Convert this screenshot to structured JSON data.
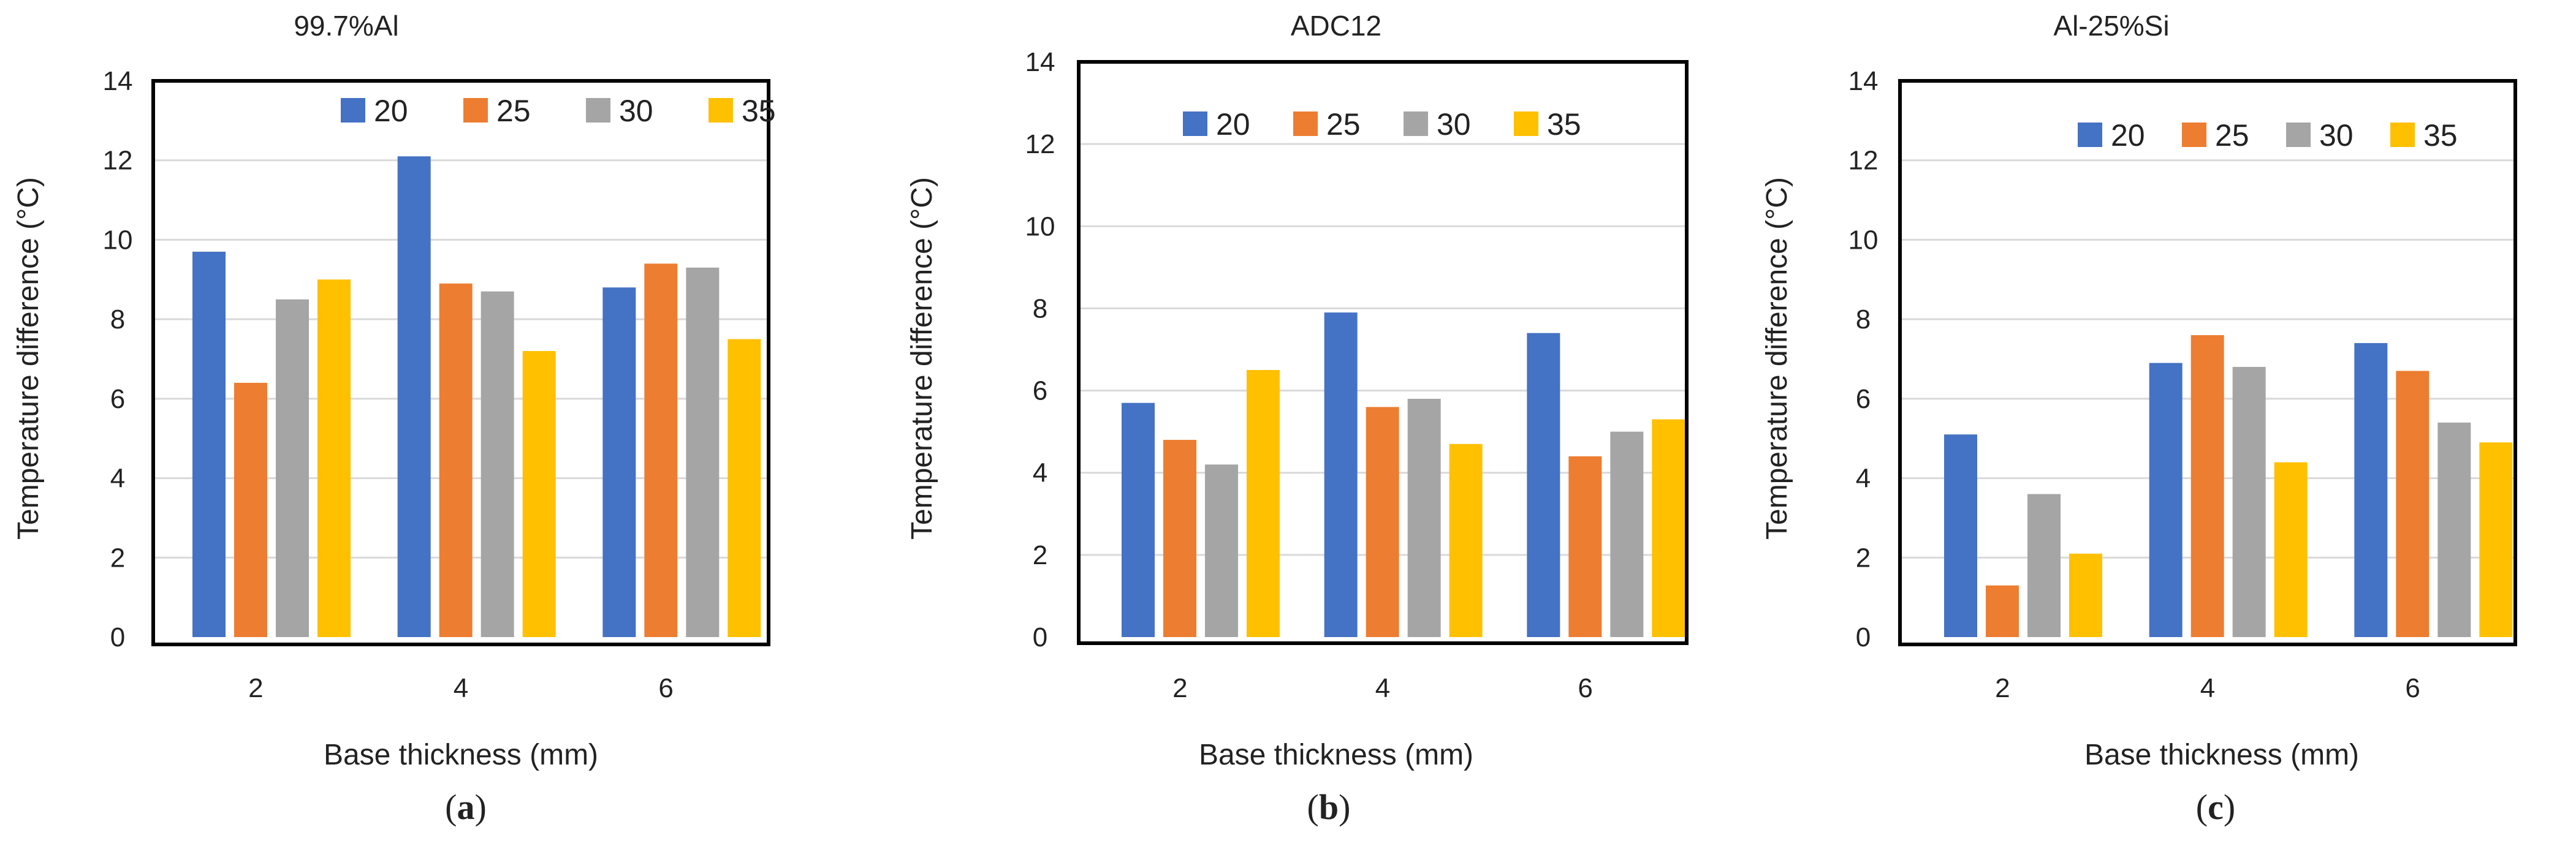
{
  "chart_data": [
    {
      "type": "bar",
      "panel": "a",
      "title": "99.7%Al",
      "xlabel": "Base thickness  (mm)",
      "ylabel": "Temperature difference (°C)",
      "categories": [
        "2",
        "4",
        "6"
      ],
      "ylim": [
        0,
        14
      ],
      "yticks": [
        0,
        2,
        4,
        6,
        8,
        10,
        12,
        14
      ],
      "grid": true,
      "legend_position": "top",
      "series": [
        {
          "name": "20",
          "color": "#4472C4",
          "values": [
            9.7,
            12.1,
            8.8
          ]
        },
        {
          "name": "25",
          "color": "#ED7D31",
          "values": [
            6.4,
            8.9,
            9.4
          ]
        },
        {
          "name": "30",
          "color": "#A5A5A5",
          "values": [
            8.5,
            8.7,
            9.3
          ]
        },
        {
          "name": "35",
          "color": "#FFC000",
          "values": [
            9.0,
            7.2,
            7.5
          ]
        }
      ]
    },
    {
      "type": "bar",
      "panel": "b",
      "title": "ADC12",
      "xlabel": "Base thickness  (mm)",
      "ylabel": "Temperature difference (°C)",
      "categories": [
        "2",
        "4",
        "6"
      ],
      "ylim": [
        0,
        14
      ],
      "yticks": [
        0,
        2,
        4,
        6,
        8,
        10,
        12,
        14
      ],
      "grid": true,
      "legend_position": "top",
      "series": [
        {
          "name": "20",
          "color": "#4472C4",
          "values": [
            5.7,
            7.9,
            7.4
          ]
        },
        {
          "name": "25",
          "color": "#ED7D31",
          "values": [
            4.8,
            5.6,
            4.4
          ]
        },
        {
          "name": "30",
          "color": "#A5A5A5",
          "values": [
            4.2,
            5.8,
            5.0
          ]
        },
        {
          "name": "35",
          "color": "#FFC000",
          "values": [
            6.5,
            4.7,
            5.3
          ]
        }
      ]
    },
    {
      "type": "bar",
      "panel": "c",
      "title": "Al-25%Si",
      "xlabel": "Base thickness (mm)",
      "ylabel": "Temperature difference (°C)",
      "categories": [
        "2",
        "4",
        "6"
      ],
      "ylim": [
        0,
        14
      ],
      "yticks": [
        0,
        2,
        4,
        6,
        8,
        10,
        12,
        14
      ],
      "grid": true,
      "legend_position": "top",
      "series": [
        {
          "name": "20",
          "color": "#4472C4",
          "values": [
            5.1,
            6.9,
            7.4
          ]
        },
        {
          "name": "25",
          "color": "#ED7D31",
          "values": [
            1.3,
            7.6,
            6.7
          ]
        },
        {
          "name": "30",
          "color": "#A5A5A5",
          "values": [
            3.6,
            6.8,
            5.4
          ]
        },
        {
          "name": "35",
          "color": "#FFC000",
          "values": [
            2.1,
            4.4,
            4.9
          ]
        }
      ]
    }
  ],
  "panel_labels": [
    "(a)",
    "(b)",
    "(c)"
  ],
  "panel_letters": [
    "a",
    "b",
    "c"
  ],
  "colors": {
    "grid": "#D9D9D9",
    "frame": "#000000",
    "text": "#222222"
  }
}
